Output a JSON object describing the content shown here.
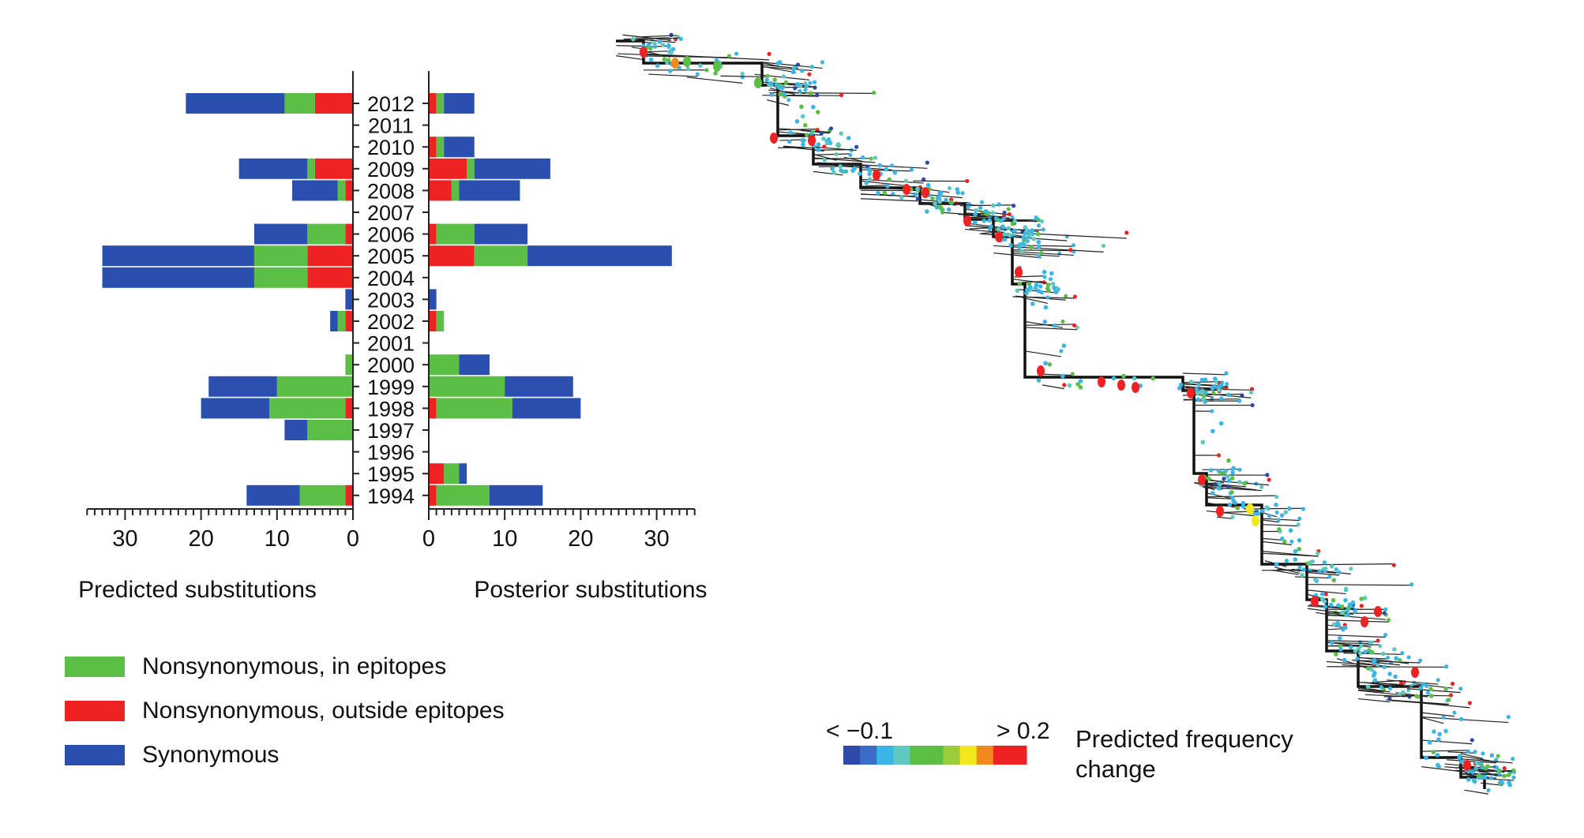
{
  "colors": {
    "epitope": "#5cbf45",
    "outside": "#ee2222",
    "synonymous": "#2b4fae"
  },
  "legend": [
    {
      "key": "epitope",
      "label": "Nonsynonymous, in epitopes"
    },
    {
      "key": "outside",
      "label": "Nonsynonymous, outside epitopes"
    },
    {
      "key": "synonymous",
      "label": "Synonymous"
    }
  ],
  "chart_data": [
    {
      "type": "bar",
      "orientation": "horizontal",
      "stacked": true,
      "xlabel": "Predicted substitutions",
      "xlim": [
        0,
        35
      ],
      "ticks": [
        0,
        10,
        20,
        30
      ],
      "categories": [
        "2012",
        "2011",
        "2010",
        "2009",
        "2008",
        "2007",
        "2006",
        "2005",
        "2004",
        "2003",
        "2002",
        "2001",
        "2000",
        "1999",
        "1998",
        "1997",
        "1996",
        "1995",
        "1994"
      ],
      "series": [
        {
          "key": "outside",
          "values": [
            5,
            0,
            0,
            5,
            1,
            0,
            1,
            6,
            6,
            0,
            1,
            0,
            0,
            0,
            1,
            0,
            0,
            0,
            1
          ]
        },
        {
          "key": "epitope",
          "values": [
            4,
            0,
            0,
            1,
            1,
            0,
            5,
            7,
            7,
            0,
            1,
            0,
            1,
            10,
            10,
            6,
            0,
            0,
            6
          ]
        },
        {
          "key": "synonymous",
          "values": [
            13,
            0,
            0,
            9,
            6,
            0,
            7,
            20,
            20,
            1,
            1,
            0,
            0,
            9,
            9,
            3,
            0,
            0,
            7
          ]
        }
      ]
    },
    {
      "type": "bar",
      "orientation": "horizontal",
      "stacked": true,
      "xlabel": "Posterior substitutions",
      "xlim": [
        0,
        35
      ],
      "ticks": [
        0,
        10,
        20,
        30
      ],
      "categories": [
        "2012",
        "2011",
        "2010",
        "2009",
        "2008",
        "2007",
        "2006",
        "2005",
        "2004",
        "2003",
        "2002",
        "2001",
        "2000",
        "1999",
        "1998",
        "1997",
        "1996",
        "1995",
        "1994"
      ],
      "series": [
        {
          "key": "outside",
          "values": [
            1,
            0,
            1,
            5,
            3,
            0,
            1,
            6,
            0,
            0,
            1,
            0,
            0,
            0,
            1,
            0,
            0,
            2,
            1
          ]
        },
        {
          "key": "epitope",
          "values": [
            1,
            0,
            1,
            1,
            1,
            0,
            5,
            7,
            0,
            0,
            1,
            0,
            4,
            10,
            10,
            0,
            0,
            2,
            7
          ]
        },
        {
          "key": "synonymous",
          "values": [
            4,
            0,
            4,
            10,
            8,
            0,
            7,
            19,
            0,
            1,
            0,
            0,
            4,
            9,
            9,
            0,
            0,
            1,
            7
          ]
        }
      ]
    }
  ],
  "color_scale": {
    "low_label": "< −0.1",
    "high_label": "> 0.2",
    "title": "Predicted frequency change",
    "colors": [
      "#2f49a8",
      "#3a6cc8",
      "#39b6e6",
      "#5fc8c0",
      "#5cbf45",
      "#5cbf45",
      "#9ccc3a",
      "#f2e81e",
      "#f08a1e",
      "#ee2222",
      "#ee2222"
    ]
  }
}
